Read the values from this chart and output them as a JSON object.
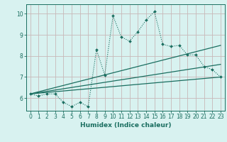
{
  "title": "",
  "xlabel": "Humidex (Indice chaleur)",
  "ylabel": "",
  "bg_color": "#d8f2f0",
  "grid_color": "#c8b8b8",
  "line_color": "#1a6e60",
  "xlim": [
    -0.5,
    23.5
  ],
  "ylim": [
    5.4,
    10.45
  ],
  "yticks": [
    6,
    7,
    8,
    9,
    10
  ],
  "xticks": [
    0,
    1,
    2,
    3,
    4,
    5,
    6,
    7,
    8,
    9,
    10,
    11,
    12,
    13,
    14,
    15,
    16,
    17,
    18,
    19,
    20,
    21,
    22,
    23
  ],
  "main_x": [
    0,
    1,
    2,
    3,
    4,
    5,
    6,
    7,
    8,
    9,
    10,
    11,
    12,
    13,
    14,
    15,
    16,
    17,
    18,
    19,
    20,
    21,
    22,
    23
  ],
  "main_y": [
    6.2,
    6.1,
    6.2,
    6.2,
    5.8,
    5.6,
    5.8,
    5.6,
    8.3,
    7.1,
    9.9,
    8.9,
    8.7,
    9.15,
    9.7,
    10.1,
    8.55,
    8.45,
    8.5,
    8.05,
    8.05,
    7.5,
    7.35,
    7.0
  ],
  "line2_x": [
    0,
    23
  ],
  "line2_y": [
    6.2,
    7.0
  ],
  "line3_x": [
    0,
    23
  ],
  "line3_y": [
    6.2,
    7.6
  ],
  "line4_x": [
    0,
    23
  ],
  "line4_y": [
    6.2,
    8.5
  ]
}
